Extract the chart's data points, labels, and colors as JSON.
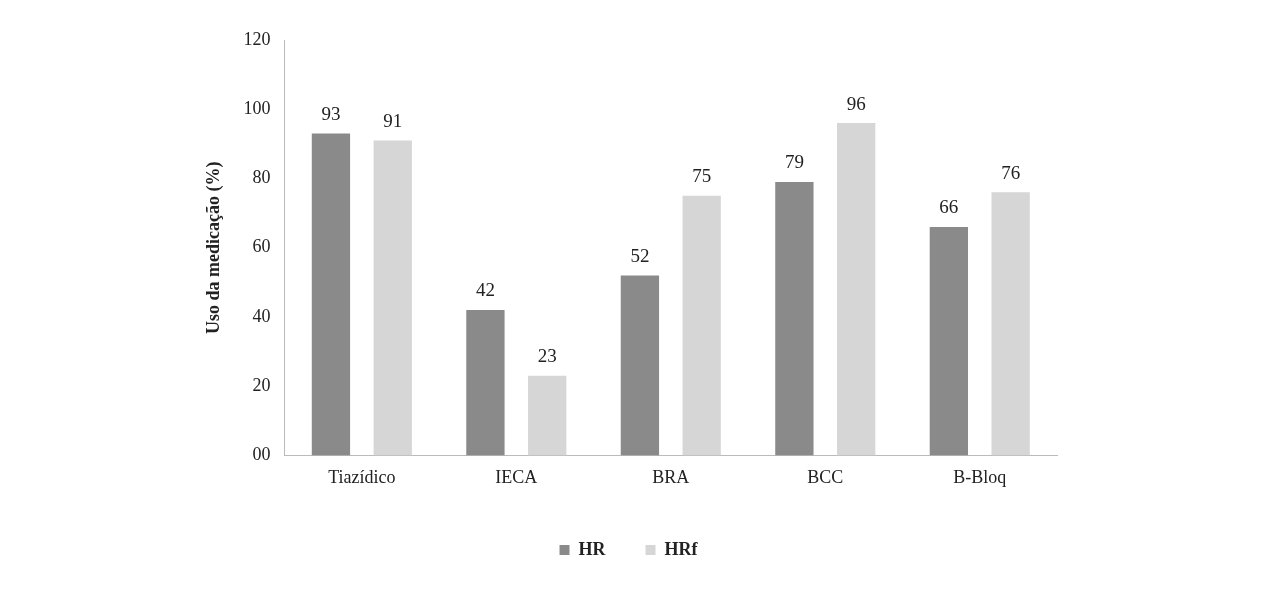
{
  "chart_data": {
    "type": "bar",
    "ylabel": "Uso da medicação (%)",
    "categories": [
      "Tiazídico",
      "IECA",
      "BRA",
      "BCC",
      "B-Bloq"
    ],
    "series": [
      {
        "name": "HR",
        "color": "#8a8a8a",
        "values": [
          93,
          42,
          52,
          79,
          66
        ]
      },
      {
        "name": "HRf",
        "color": "#d6d6d6",
        "values": [
          91,
          23,
          75,
          96,
          76
        ]
      }
    ],
    "ylim": [
      0,
      120
    ],
    "yticks": [
      {
        "value": 0,
        "label": "00"
      },
      20,
      40,
      60,
      80,
      100,
      120
    ],
    "grid": false,
    "legend": "bottom",
    "data_labels": true
  }
}
